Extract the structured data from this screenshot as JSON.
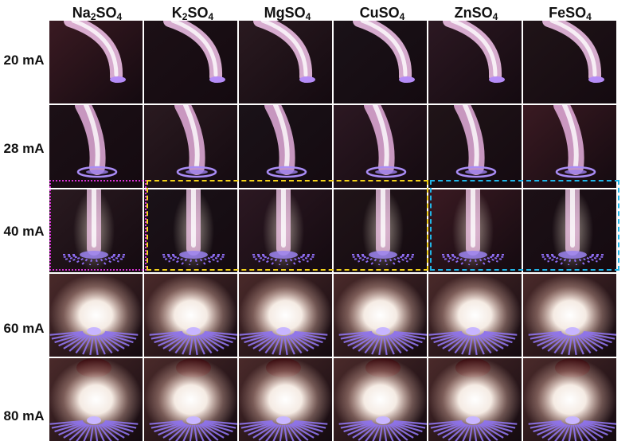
{
  "columns": [
    {
      "base": "Na",
      "sub1": "2",
      "mid": "SO",
      "sub2": "4"
    },
    {
      "base": "K",
      "sub1": "2",
      "mid": "SO",
      "sub2": "4"
    },
    {
      "base": "MgSO",
      "sub1": "",
      "mid": "",
      "sub2": "4"
    },
    {
      "base": "CuSO",
      "sub1": "",
      "mid": "",
      "sub2": "4"
    },
    {
      "base": "ZnSO",
      "sub1": "",
      "mid": "",
      "sub2": "4"
    },
    {
      "base": "FeSO",
      "sub1": "",
      "mid": "",
      "sub2": "4"
    }
  ],
  "rows": [
    "20 mA",
    "28 mA",
    "40 mA",
    "60 mA",
    "80 mA"
  ],
  "colors": {
    "magenta_box": "#d633d6",
    "yellow_box": "#f2d21b",
    "cyan_box": "#21b6e8",
    "plasma_pink": "#f4b8ea",
    "plasma_violet": "#8c6cf0"
  }
}
